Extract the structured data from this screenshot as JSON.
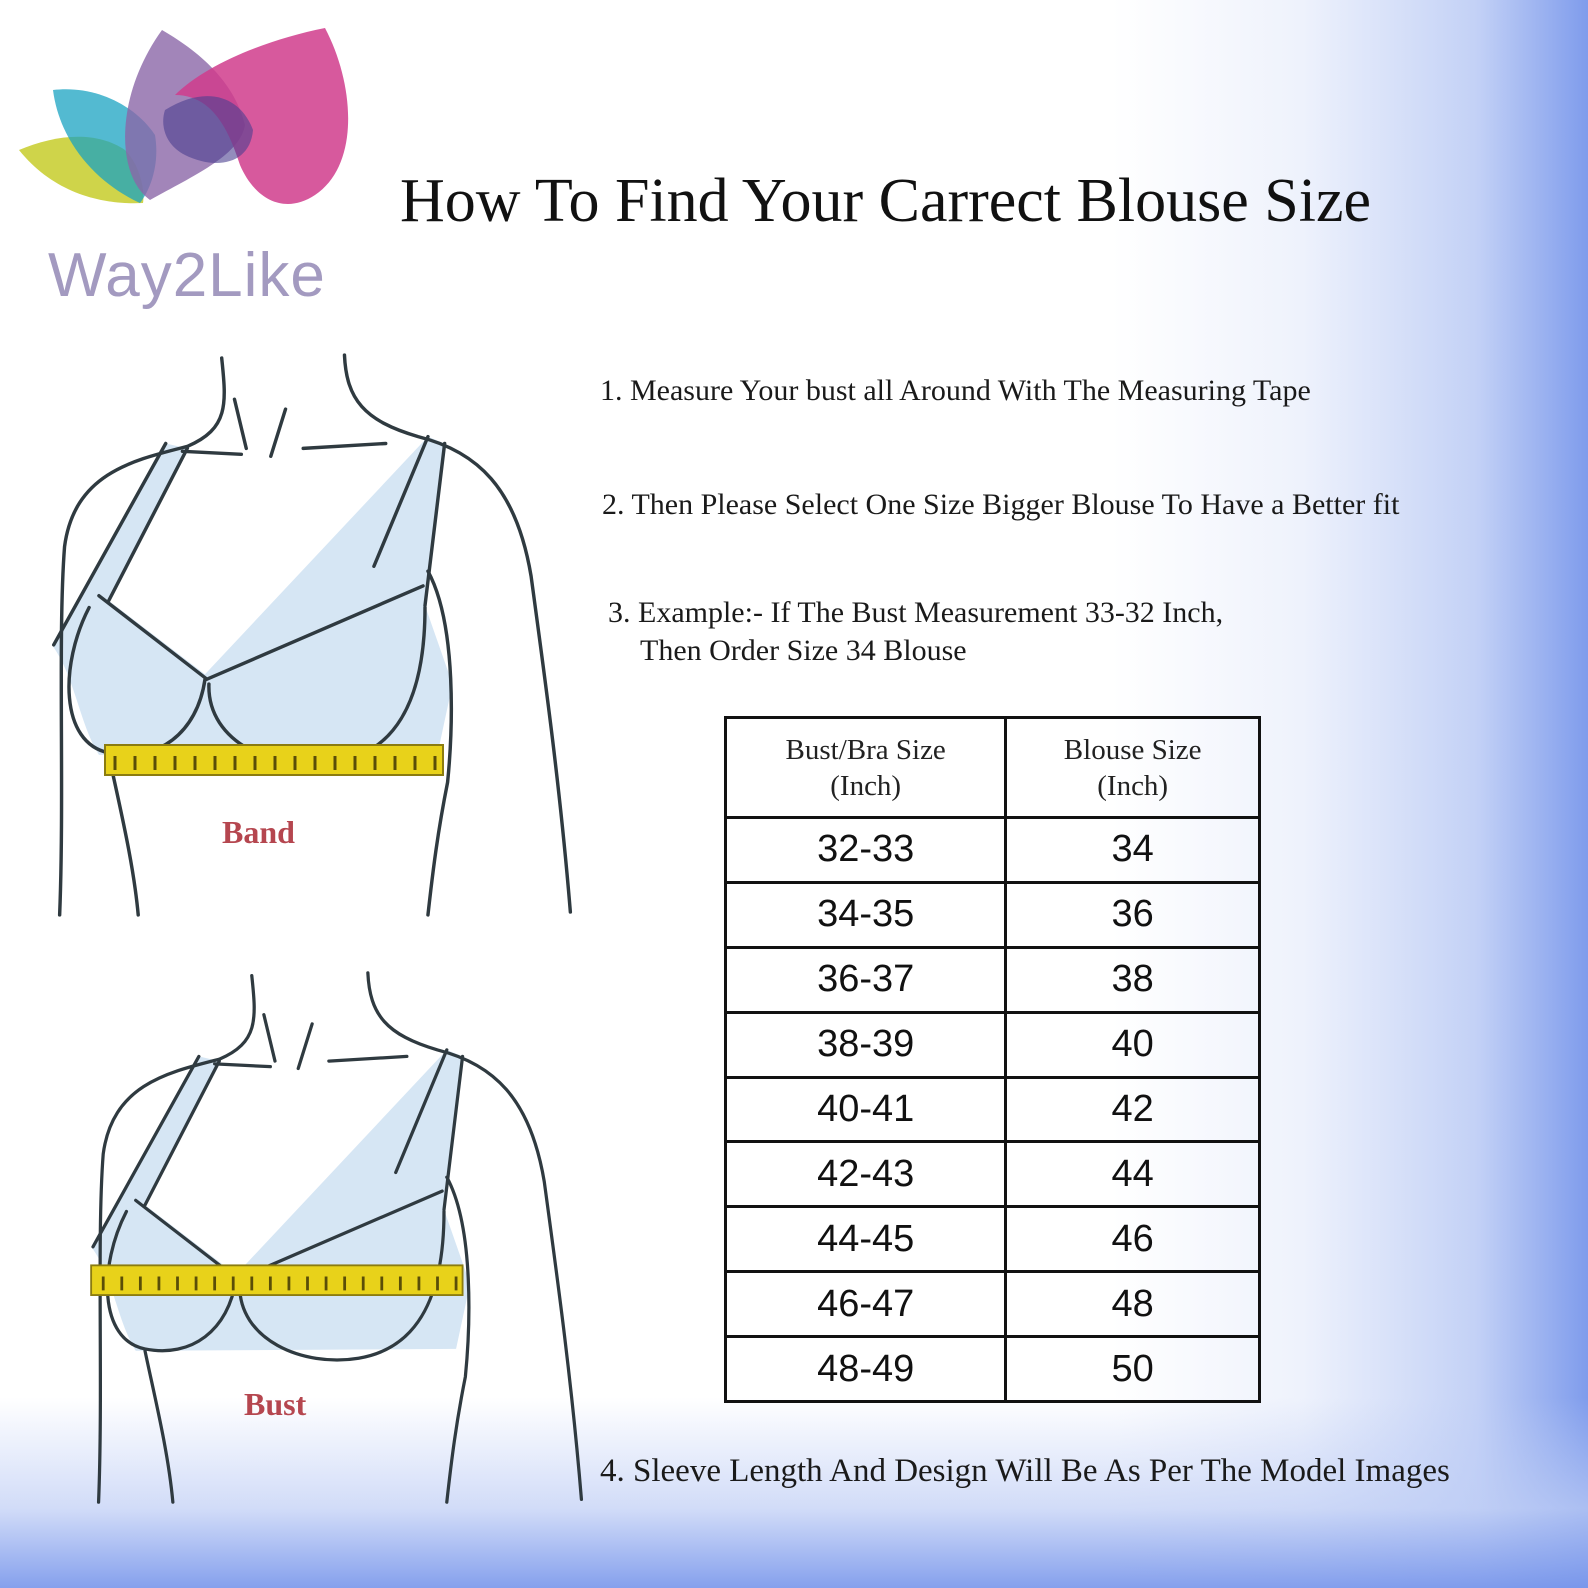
{
  "brand": {
    "name": "Way2Like",
    "logo_icon": "lotus-petals-logo"
  },
  "title": "How To Find Your Carrect Blouse Size",
  "steps": [
    "1. Measure Your bust all Around With The Measuring Tape",
    "2. Then Please Select One Size Bigger Blouse To Have a Better fit",
    "3. Example:- If The Bust Measurement  33-32 Inch,",
    "Then Order Size 34 Blouse",
    "4. Sleeve Length And Design Will Be As Per The Model Images"
  ],
  "figures": {
    "band_label": "Band",
    "bust_label": "Bust"
  },
  "table": {
    "headers": [
      [
        "Bust/Bra Size",
        "(Inch)"
      ],
      [
        "Blouse Size",
        "(Inch)"
      ]
    ],
    "rows": [
      [
        "32-33",
        "34"
      ],
      [
        "34-35",
        "36"
      ],
      [
        "36-37",
        "38"
      ],
      [
        "38-39",
        "40"
      ],
      [
        "40-41",
        "42"
      ],
      [
        "42-43",
        "44"
      ],
      [
        "44-45",
        "46"
      ],
      [
        "46-47",
        "48"
      ],
      [
        "48-49",
        "50"
      ]
    ]
  },
  "colors": {
    "tape": "#e8d21a",
    "bra": "#d6e6f4",
    "label": "#b5464f",
    "accent_blue": "#7f9cec"
  }
}
